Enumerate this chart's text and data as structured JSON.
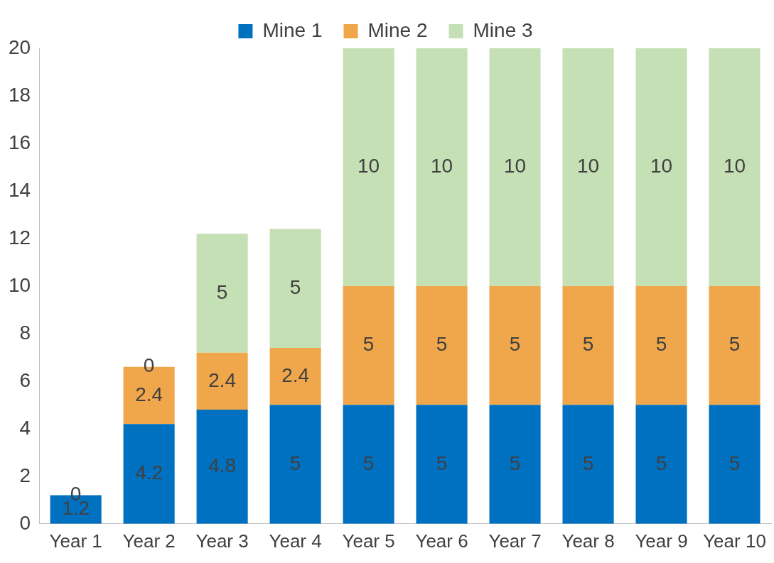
{
  "chart_data": {
    "type": "bar",
    "stacked": true,
    "categories": [
      "Year 1",
      "Year 2",
      "Year 3",
      "Year 4",
      "Year 5",
      "Year 6",
      "Year 7",
      "Year 8",
      "Year 9",
      "Year 10"
    ],
    "series": [
      {
        "name": "Mine 1",
        "color": "#0070c0",
        "values": [
          1.2,
          4.2,
          4.8,
          5,
          5,
          5,
          5,
          5,
          5,
          5
        ],
        "value_labels": [
          "1.2",
          "4.2",
          "4.8",
          "5",
          "5",
          "5",
          "5",
          "5",
          "5",
          "5"
        ]
      },
      {
        "name": "Mine 2",
        "color": "#f0a64a",
        "values": [
          0,
          2.4,
          2.4,
          2.4,
          5,
          5,
          5,
          5,
          5,
          5
        ],
        "value_labels": [
          "0",
          "2.4",
          "2.4",
          "2.4",
          "5",
          "5",
          "5",
          "5",
          "5",
          "5"
        ]
      },
      {
        "name": "Mine 3",
        "color": "#c5e0b4",
        "values": [
          0,
          0,
          5,
          5,
          10,
          10,
          10,
          10,
          10,
          10
        ],
        "value_labels": [
          null,
          "0",
          "5",
          "5",
          "10",
          "10",
          "10",
          "10",
          "10",
          "10"
        ]
      }
    ],
    "ylim": [
      0,
      20
    ],
    "yticks": [
      0,
      2,
      4,
      6,
      8,
      10,
      12,
      14,
      16,
      18,
      20
    ],
    "grid": false,
    "legend": "top"
  }
}
